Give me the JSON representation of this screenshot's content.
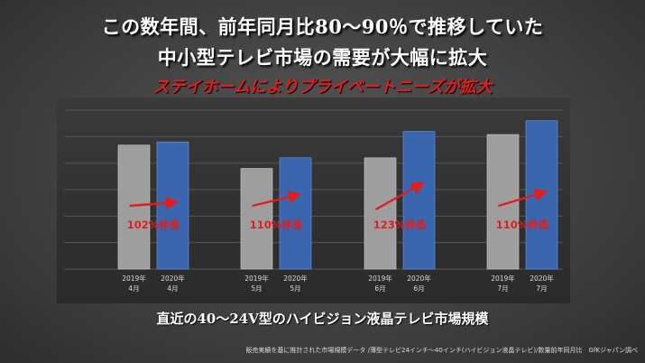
{
  "slide": {
    "headline_line1": "この数年間、前年同月比80～90％で推移していた",
    "headline_line2": "中小型テレビ市場の需要が大幅に拡大",
    "subheadline": "ステイホームによりプライベートニーズが拡大",
    "caption": "直近の40～24V型のハイビジョン液晶テレビ市場規模",
    "source": "販売実績を基に推計された市場規模データ /薄型テレビ24インチ～40インチ(ハイビジョン液晶テレビ)/数量前年同月比　GfKジャパン調べ"
  },
  "colors": {
    "bar_2019": "#9e9e9e",
    "bar_2020": "#3a66b0",
    "growth_label": "#e21d1d",
    "arrow": "#e21d1d"
  },
  "chart_data": {
    "type": "bar",
    "grid": true,
    "ylim": [
      0,
      150
    ],
    "groups": [
      {
        "month": "4月",
        "growth_label": "102%伸長",
        "bars": [
          {
            "year": "2019年",
            "value": 117
          },
          {
            "year": "2020年",
            "value": 120
          }
        ]
      },
      {
        "month": "5月",
        "growth_label": "110%伸長",
        "bars": [
          {
            "year": "2019年",
            "value": 95
          },
          {
            "year": "2020年",
            "value": 105
          }
        ]
      },
      {
        "month": "6月",
        "growth_label": "123%伸長",
        "bars": [
          {
            "year": "2019年",
            "value": 105
          },
          {
            "year": "2020年",
            "value": 130
          }
        ]
      },
      {
        "month": "7月",
        "growth_label": "110%伸長",
        "bars": [
          {
            "year": "2019年",
            "value": 127
          },
          {
            "year": "2020年",
            "value": 140
          }
        ]
      }
    ]
  }
}
